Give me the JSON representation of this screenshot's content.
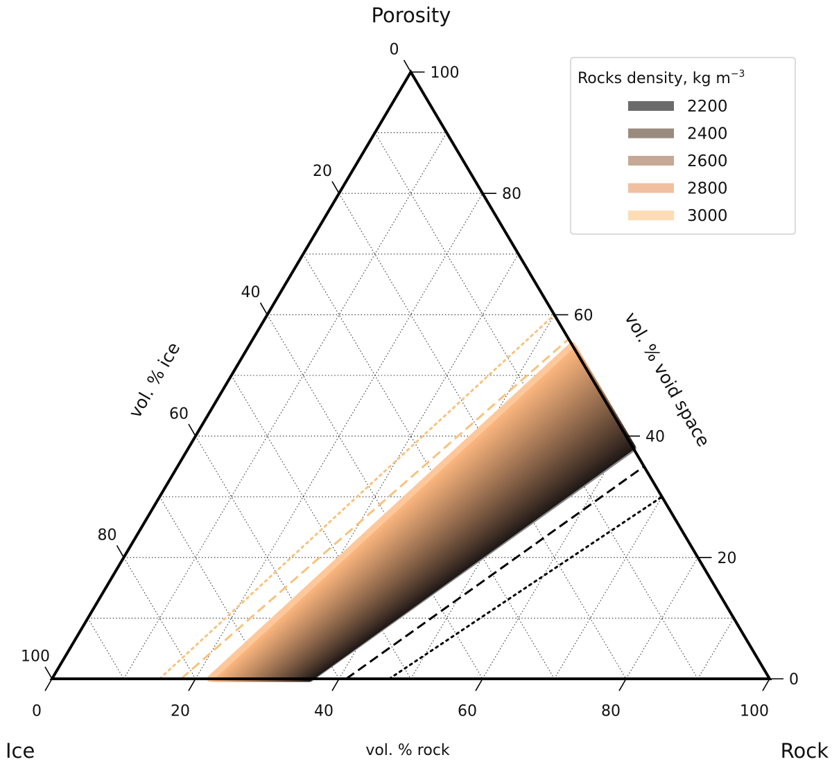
{
  "chart_data": {
    "type": "ternary",
    "corner_labels": {
      "top": "Porosity",
      "left": "Ice",
      "right": "Rock"
    },
    "axis_labels": {
      "ice": "vol. % ice",
      "void": "vol. % void space",
      "rock": "vol. % rock"
    },
    "ticks": {
      "bottom": [
        "0",
        "20",
        "40",
        "60",
        "80",
        "100"
      ],
      "left": [
        "100",
        "80",
        "60",
        "40",
        "20",
        "0"
      ],
      "right": [
        "0",
        "20",
        "40",
        "60",
        "80",
        "100"
      ]
    },
    "grid": true,
    "grid_step_percent": 10,
    "legend": {
      "title": "Rocks density, kg m",
      "title_sup": "−3",
      "placement": "top-right",
      "entries": [
        {
          "label": "2200",
          "color": "#6b6b6b"
        },
        {
          "label": "2400",
          "color": "#9a8a7e"
        },
        {
          "label": "2600",
          "color": "#c5a896"
        },
        {
          "label": "2800",
          "color": "#f0c0a0"
        },
        {
          "label": "3000",
          "color": "#fddcb6"
        }
      ]
    },
    "band": {
      "description_series": "Rocks density",
      "density_range": [
        2200,
        3000
      ],
      "dark_color": "#1a1414",
      "light_color": "#fdb77f",
      "edge_far_color": "#888888",
      "edge_near_color": "#ffc89a",
      "count": 70,
      "far_edge": {
        "rock_at_zero_porosity": 36,
        "porosity_at_zero_ice": 38
      },
      "near_edge": {
        "rock_at_zero_porosity": 22,
        "porosity_at_zero_ice": 55
      },
      "rock_at_zero_porosity_range": [
        22,
        36
      ],
      "porosity_at_zero_ice_range": [
        38,
        55
      ],
      "max_porosity_along_edge": 55
    },
    "reference_lines": [
      {
        "style": "dotted",
        "color": "#f8c27c",
        "rock_at_zero_porosity": 15,
        "porosity_at_zero_ice": 60
      },
      {
        "style": "dashed",
        "color": "#f8c27c",
        "rock_at_zero_porosity": 18,
        "porosity_at_zero_ice": 56
      },
      {
        "style": "dashed",
        "color": "#000000",
        "rock_at_zero_porosity": 41,
        "porosity_at_zero_ice": 35
      },
      {
        "style": "dotted",
        "color": "#000000",
        "rock_at_zero_porosity": 47,
        "porosity_at_zero_ice": 30
      }
    ]
  }
}
